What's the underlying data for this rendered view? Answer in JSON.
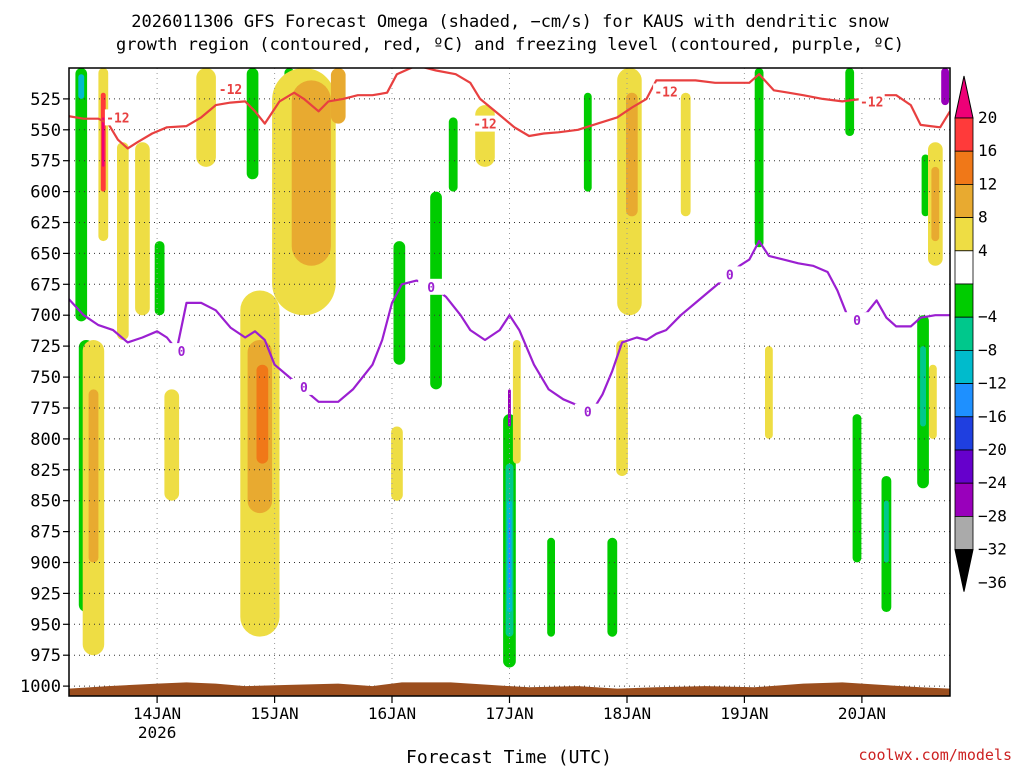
{
  "chart_data": {
    "type": "heatmap",
    "title_line1": "2026011306 GFS Forecast Omega (shaded, −cm/s) for KAUS with dendritic snow",
    "title_line2": "growth region (contoured, red, ºC) and freezing level (contoured, purple, ºC)",
    "xlabel": "Forecast Time (UTC)",
    "credit": "coolwx.com/models",
    "x_axis": {
      "unit": "hours after 2026-01-13 06 UTC",
      "range": [
        0,
        180
      ],
      "ticks": [
        {
          "hour": 18,
          "label": "14JAN",
          "sublabel": "2026"
        },
        {
          "hour": 42,
          "label": "15JAN"
        },
        {
          "hour": 66,
          "label": "16JAN"
        },
        {
          "hour": 90,
          "label": "17JAN"
        },
        {
          "hour": 114,
          "label": "18JAN"
        },
        {
          "hour": 138,
          "label": "19JAN"
        },
        {
          "hour": 162,
          "label": "20JAN"
        }
      ]
    },
    "y_axis": {
      "unit": "hPa",
      "range": [
        500,
        1008
      ],
      "inverted": true,
      "ticks": [
        525,
        550,
        575,
        600,
        625,
        650,
        675,
        700,
        725,
        750,
        775,
        800,
        825,
        850,
        875,
        900,
        925,
        950,
        975,
        1000
      ]
    },
    "grid": true,
    "colorbar": {
      "placement": "right",
      "labels": [
        "20",
        "16",
        "12",
        "8",
        "4",
        "−4",
        "−8",
        "−12",
        "−16",
        "−20",
        "−24",
        "−28",
        "−32",
        "−36"
      ],
      "bins": [
        {
          "range": "> 20",
          "color": "#ee0077"
        },
        {
          "range": "16 to 20",
          "color": "#ff3a3a"
        },
        {
          "range": "12 to 16",
          "color": "#f07818"
        },
        {
          "range": "8 to 12",
          "color": "#e8aa30"
        },
        {
          "range": "4 to 8",
          "color": "#eedd44"
        },
        {
          "range": "-4 to 4",
          "color": "#ffffff"
        },
        {
          "range": "-8 to -4",
          "color": "#00cc00"
        },
        {
          "range": "-12 to -8",
          "color": "#00c88c"
        },
        {
          "range": "-16 to -12",
          "color": "#00bbcc"
        },
        {
          "range": "-20 to -16",
          "color": "#1e90ff"
        },
        {
          "range": "-24 to -20",
          "color": "#1f3fe0"
        },
        {
          "range": "-28 to -24",
          "color": "#6600cc"
        },
        {
          "range": "-32 to -28",
          "color": "#9900bb"
        },
        {
          "range": "-36 to -32",
          "color": "#aaaaaa"
        },
        {
          "range": "< -36",
          "color": "#000000"
        }
      ]
    },
    "omega_regions": [
      {
        "hour": 2.5,
        "half_width": 1.2,
        "top": 500,
        "bottom": 705,
        "color": "#00cc00"
      },
      {
        "hour": 2.5,
        "half_width": 0.6,
        "top": 505,
        "bottom": 525,
        "color": "#00bbcc"
      },
      {
        "hour": 3.5,
        "half_width": 1.5,
        "top": 720,
        "bottom": 940,
        "color": "#00cc00"
      },
      {
        "hour": 7.0,
        "half_width": 1.0,
        "top": 500,
        "bottom": 640,
        "color": "#eedd44"
      },
      {
        "hour": 7.0,
        "half_width": 0.5,
        "top": 520,
        "bottom": 600,
        "color": "#ff3a3a"
      },
      {
        "hour": 7.0,
        "half_width": 0.25,
        "top": 540,
        "bottom": 580,
        "color": "#ee0077"
      },
      {
        "hour": 5.0,
        "half_width": 2.2,
        "top": 720,
        "bottom": 975,
        "color": "#eedd44"
      },
      {
        "hour": 5.0,
        "half_width": 1.0,
        "top": 760,
        "bottom": 900,
        "color": "#e8aa30"
      },
      {
        "hour": 11.0,
        "half_width": 1.2,
        "top": 560,
        "bottom": 720,
        "color": "#eedd44"
      },
      {
        "hour": 15.0,
        "half_width": 1.5,
        "top": 560,
        "bottom": 700,
        "color": "#eedd44"
      },
      {
        "hour": 18.5,
        "half_width": 1.0,
        "top": 640,
        "bottom": 700,
        "color": "#00cc00"
      },
      {
        "hour": 21.0,
        "half_width": 1.5,
        "top": 760,
        "bottom": 850,
        "color": "#eedd44"
      },
      {
        "hour": 28.0,
        "half_width": 2.0,
        "top": 500,
        "bottom": 580,
        "color": "#eedd44"
      },
      {
        "hour": 37.5,
        "half_width": 1.2,
        "top": 500,
        "bottom": 590,
        "color": "#00cc00"
      },
      {
        "hour": 39.0,
        "half_width": 4.0,
        "top": 680,
        "bottom": 960,
        "color": "#eedd44"
      },
      {
        "hour": 39.0,
        "half_width": 2.5,
        "top": 720,
        "bottom": 860,
        "color": "#e8aa30"
      },
      {
        "hour": 39.5,
        "half_width": 1.2,
        "top": 740,
        "bottom": 820,
        "color": "#f07818"
      },
      {
        "hour": 45.0,
        "half_width": 1.0,
        "top": 500,
        "bottom": 560,
        "color": "#00cc00"
      },
      {
        "hour": 48.0,
        "half_width": 6.5,
        "top": 500,
        "bottom": 700,
        "color": "#eedd44"
      },
      {
        "hour": 49.5,
        "half_width": 4.0,
        "top": 510,
        "bottom": 660,
        "color": "#e8aa30"
      },
      {
        "hour": 55.0,
        "half_width": 1.5,
        "top": 500,
        "bottom": 545,
        "color": "#e8aa30"
      },
      {
        "hour": 67.5,
        "half_width": 1.2,
        "top": 640,
        "bottom": 740,
        "color": "#00cc00"
      },
      {
        "hour": 67.0,
        "half_width": 1.2,
        "top": 790,
        "bottom": 850,
        "color": "#eedd44"
      },
      {
        "hour": 75.0,
        "half_width": 1.2,
        "top": 600,
        "bottom": 760,
        "color": "#00cc00"
      },
      {
        "hour": 78.5,
        "half_width": 0.9,
        "top": 540,
        "bottom": 600,
        "color": "#00cc00"
      },
      {
        "hour": 85.0,
        "half_width": 2.0,
        "top": 530,
        "bottom": 580,
        "color": "#eedd44"
      },
      {
        "hour": 90.0,
        "half_width": 1.3,
        "top": 780,
        "bottom": 985,
        "color": "#00cc00"
      },
      {
        "hour": 90.0,
        "half_width": 0.8,
        "top": 820,
        "bottom": 960,
        "color": "#00c88c"
      },
      {
        "hour": 90.0,
        "half_width": 0.5,
        "top": 850,
        "bottom": 940,
        "color": "#00bbcc"
      },
      {
        "hour": 90.0,
        "half_width": 0.25,
        "top": 865,
        "bottom": 920,
        "color": "#1e90ff"
      },
      {
        "hour": 90.0,
        "half_width": 0.3,
        "top": 760,
        "bottom": 790,
        "color": "#9900bb"
      },
      {
        "hour": 91.5,
        "half_width": 0.8,
        "top": 720,
        "bottom": 820,
        "color": "#eedd44"
      },
      {
        "hour": 98.5,
        "half_width": 0.8,
        "top": 880,
        "bottom": 960,
        "color": "#00cc00"
      },
      {
        "hour": 106.0,
        "half_width": 0.8,
        "top": 520,
        "bottom": 600,
        "color": "#00cc00"
      },
      {
        "hour": 111.0,
        "half_width": 1.0,
        "top": 880,
        "bottom": 960,
        "color": "#00cc00"
      },
      {
        "hour": 113.0,
        "half_width": 1.2,
        "top": 720,
        "bottom": 830,
        "color": "#eedd44"
      },
      {
        "hour": 114.5,
        "half_width": 2.5,
        "top": 500,
        "bottom": 700,
        "color": "#eedd44"
      },
      {
        "hour": 115.0,
        "half_width": 1.2,
        "top": 520,
        "bottom": 620,
        "color": "#e8aa30"
      },
      {
        "hour": 126.0,
        "half_width": 1.0,
        "top": 520,
        "bottom": 620,
        "color": "#eedd44"
      },
      {
        "hour": 141.0,
        "half_width": 0.9,
        "top": 500,
        "bottom": 645,
        "color": "#00cc00"
      },
      {
        "hour": 143.0,
        "half_width": 0.8,
        "top": 725,
        "bottom": 800,
        "color": "#eedd44"
      },
      {
        "hour": 159.5,
        "half_width": 0.9,
        "top": 500,
        "bottom": 555,
        "color": "#00cc00"
      },
      {
        "hour": 161.0,
        "half_width": 0.9,
        "top": 780,
        "bottom": 900,
        "color": "#00cc00"
      },
      {
        "hour": 167.0,
        "half_width": 1.0,
        "top": 830,
        "bottom": 940,
        "color": "#00cc00"
      },
      {
        "hour": 167.0,
        "half_width": 0.5,
        "top": 850,
        "bottom": 900,
        "color": "#00c88c"
      },
      {
        "hour": 175.0,
        "half_width": 0.8,
        "top": 570,
        "bottom": 620,
        "color": "#00cc00"
      },
      {
        "hour": 177.0,
        "half_width": 1.5,
        "top": 560,
        "bottom": 660,
        "color": "#eedd44"
      },
      {
        "hour": 177.0,
        "half_width": 0.8,
        "top": 580,
        "bottom": 640,
        "color": "#e8aa30"
      },
      {
        "hour": 174.5,
        "half_width": 1.2,
        "top": 700,
        "bottom": 840,
        "color": "#00cc00"
      },
      {
        "hour": 174.5,
        "half_width": 0.6,
        "top": 725,
        "bottom": 790,
        "color": "#00c88c"
      },
      {
        "hour": 176.5,
        "half_width": 0.8,
        "top": 740,
        "bottom": 800,
        "color": "#eedd44"
      },
      {
        "hour": 179.0,
        "half_width": 0.8,
        "top": 500,
        "bottom": 530,
        "color": "#9900bb"
      }
    ],
    "contours": [
      {
        "name": "-12",
        "color": "#e84040",
        "labels": [
          {
            "hour": 10,
            "p": 540
          },
          {
            "hour": 33,
            "p": 517
          },
          {
            "hour": 85,
            "p": 545
          },
          {
            "hour": 122,
            "p": 519
          },
          {
            "hour": 164,
            "p": 527
          }
        ],
        "points": [
          [
            0,
            539
          ],
          [
            3,
            541
          ],
          [
            6,
            541
          ],
          [
            8,
            545
          ],
          [
            10,
            558
          ],
          [
            12,
            565
          ],
          [
            14,
            560
          ],
          [
            17,
            553
          ],
          [
            20,
            548
          ],
          [
            24,
            547
          ],
          [
            27,
            540
          ],
          [
            30,
            530
          ],
          [
            33,
            528
          ],
          [
            36,
            527
          ],
          [
            38,
            535
          ],
          [
            40,
            545
          ],
          [
            43,
            527
          ],
          [
            46,
            520
          ],
          [
            48,
            525
          ],
          [
            51,
            535
          ],
          [
            53,
            527
          ],
          [
            56,
            525
          ],
          [
            59,
            522
          ],
          [
            62,
            522
          ],
          [
            65,
            520
          ],
          [
            67,
            505
          ],
          [
            71,
            498
          ],
          [
            75,
            502
          ],
          [
            79,
            505
          ],
          [
            82,
            512
          ],
          [
            84,
            525
          ],
          [
            88,
            538
          ],
          [
            91,
            548
          ],
          [
            94,
            555
          ],
          [
            97,
            553
          ],
          [
            100,
            552
          ],
          [
            104,
            550
          ],
          [
            108,
            545
          ],
          [
            112,
            540
          ],
          [
            115,
            532
          ],
          [
            118,
            525
          ],
          [
            120,
            510
          ],
          [
            124,
            510
          ],
          [
            128,
            510
          ],
          [
            132,
            512
          ],
          [
            136,
            512
          ],
          [
            139,
            512
          ],
          [
            141,
            505
          ],
          [
            144,
            518
          ],
          [
            147,
            520
          ],
          [
            150,
            522
          ],
          [
            154,
            525
          ],
          [
            158,
            527
          ],
          [
            162,
            525
          ],
          [
            166,
            522
          ],
          [
            169,
            522
          ],
          [
            172,
            530
          ],
          [
            174,
            546
          ],
          [
            176,
            547
          ],
          [
            178,
            548
          ],
          [
            180,
            535
          ]
        ]
      },
      {
        "name": "0",
        "color": "#9b1fd1",
        "labels": [
          {
            "hour": 23,
            "p": 729
          },
          {
            "hour": 48,
            "p": 758
          },
          {
            "hour": 74,
            "p": 677
          },
          {
            "hour": 106,
            "p": 778
          },
          {
            "hour": 135,
            "p": 667
          },
          {
            "hour": 161,
            "p": 704
          }
        ],
        "points": [
          [
            0,
            687
          ],
          [
            3,
            700
          ],
          [
            6,
            708
          ],
          [
            9,
            712
          ],
          [
            12,
            722
          ],
          [
            15,
            718
          ],
          [
            18,
            713
          ],
          [
            20,
            718
          ],
          [
            22,
            728
          ],
          [
            24,
            690
          ],
          [
            27,
            690
          ],
          [
            30,
            696
          ],
          [
            33,
            710
          ],
          [
            36,
            718
          ],
          [
            38,
            713
          ],
          [
            40,
            720
          ],
          [
            42,
            740
          ],
          [
            45,
            750
          ],
          [
            48,
            760
          ],
          [
            51,
            770
          ],
          [
            55,
            770
          ],
          [
            58,
            760
          ],
          [
            62,
            740
          ],
          [
            64,
            720
          ],
          [
            66,
            690
          ],
          [
            68,
            675
          ],
          [
            71,
            672
          ],
          [
            74,
            676
          ],
          [
            77,
            685
          ],
          [
            80,
            700
          ],
          [
            82,
            712
          ],
          [
            85,
            720
          ],
          [
            88,
            712
          ],
          [
            90,
            700
          ],
          [
            92,
            712
          ],
          [
            95,
            740
          ],
          [
            98,
            760
          ],
          [
            101,
            768
          ],
          [
            104,
            773
          ],
          [
            107,
            777
          ],
          [
            109,
            764
          ],
          [
            111,
            745
          ],
          [
            113,
            722
          ],
          [
            116,
            718
          ],
          [
            118,
            720
          ],
          [
            120,
            715
          ],
          [
            122,
            712
          ],
          [
            125,
            700
          ],
          [
            128,
            690
          ],
          [
            131,
            680
          ],
          [
            134,
            670
          ],
          [
            137,
            660
          ],
          [
            139,
            655
          ],
          [
            141,
            640
          ],
          [
            143,
            652
          ],
          [
            146,
            655
          ],
          [
            149,
            658
          ],
          [
            152,
            660
          ],
          [
            155,
            665
          ],
          [
            157,
            680
          ],
          [
            159,
            700
          ],
          [
            161,
            700
          ],
          [
            163,
            698
          ],
          [
            165,
            688
          ],
          [
            167,
            702
          ],
          [
            169,
            709
          ],
          [
            172,
            709
          ],
          [
            174,
            702
          ],
          [
            177,
            700
          ],
          [
            180,
            700
          ]
        ]
      }
    ],
    "terrain": {
      "color": "#9b4e1e",
      "points": [
        [
          0,
          1002
        ],
        [
          8,
          1000
        ],
        [
          18,
          998
        ],
        [
          24,
          997
        ],
        [
          30,
          998
        ],
        [
          36,
          1000
        ],
        [
          45,
          999
        ],
        [
          55,
          998
        ],
        [
          62,
          1000
        ],
        [
          68,
          997
        ],
        [
          78,
          997
        ],
        [
          86,
          999
        ],
        [
          94,
          1001
        ],
        [
          104,
          1000
        ],
        [
          112,
          1002
        ],
        [
          120,
          1001
        ],
        [
          130,
          1000
        ],
        [
          140,
          1001
        ],
        [
          150,
          998
        ],
        [
          158,
          997
        ],
        [
          166,
          999
        ],
        [
          174,
          1001
        ],
        [
          180,
          1002
        ]
      ]
    }
  }
}
